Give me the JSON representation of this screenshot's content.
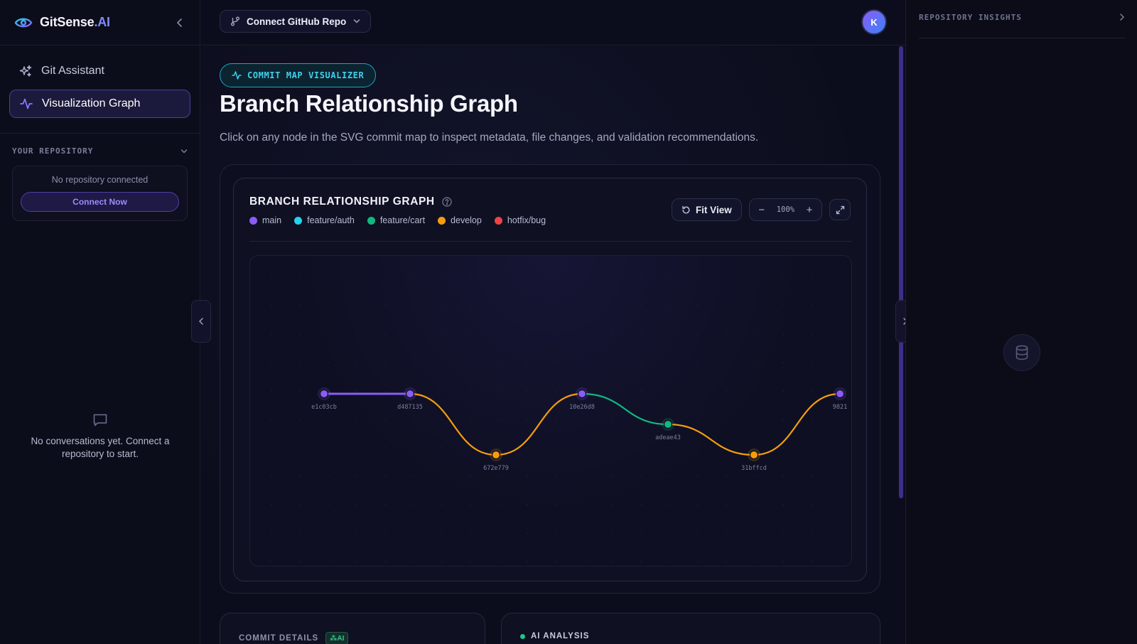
{
  "brand": {
    "name": "GitSense",
    "suffix": ".AI"
  },
  "sidebar": {
    "nav": [
      {
        "label": "Git Assistant",
        "icon": "sparkles-icon",
        "active": false
      },
      {
        "label": "Visualization Graph",
        "icon": "activity-icon",
        "active": true
      }
    ],
    "repo_section_title": "YOUR REPOSITORY",
    "repo_empty_text": "No repository connected",
    "connect_now_label": "Connect Now",
    "conversations_empty": "No conversations yet. Connect a repository to start."
  },
  "topbar": {
    "repo_button_label": "Connect GitHub Repo",
    "avatar_initial": "K"
  },
  "main": {
    "badge": "COMMIT MAP VISUALIZER",
    "title": "Branch Relationship Graph",
    "subtitle": "Click on any node in the SVG commit map to inspect metadata, file changes, and validation recommendations.",
    "graph": {
      "title": "BRANCH RELATIONSHIP GRAPH",
      "fit_view_label": "Fit View",
      "zoom_minus": "−",
      "zoom_value": "100%",
      "zoom_plus": "+",
      "legend": [
        {
          "name": "main",
          "color": "#8b5cf6"
        },
        {
          "name": "feature/auth",
          "color": "#22d3ee"
        },
        {
          "name": "feature/cart",
          "color": "#10b981"
        },
        {
          "name": "develop",
          "color": "#f59e0b"
        },
        {
          "name": "hotfix/bug",
          "color": "#ef4444"
        }
      ],
      "commits": [
        {
          "hash": "e1c03cb",
          "branch": "main"
        },
        {
          "hash": "d487135",
          "branch": "main"
        },
        {
          "hash": "672e779",
          "branch": "develop"
        },
        {
          "hash": "10e26d8",
          "branch": "main"
        },
        {
          "hash": "adeae43",
          "branch": "feature/cart"
        },
        {
          "hash": "31bffcd",
          "branch": "develop"
        },
        {
          "hash": "9821",
          "branch": "main"
        }
      ]
    },
    "commit_details_title": "COMMIT DETAILS",
    "commit_details_badge": "AI",
    "ai_analysis_title": "AI ANALYSIS"
  },
  "right_panel": {
    "title": "REPOSITORY INSIGHTS"
  }
}
